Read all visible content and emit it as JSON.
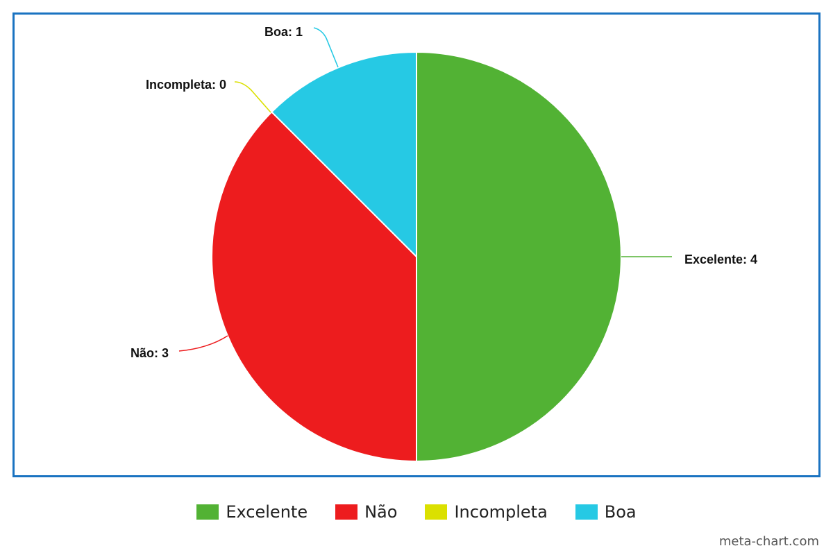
{
  "chart_data": {
    "type": "pie",
    "title": "",
    "slices": [
      {
        "label": "Excelente",
        "value": 4,
        "color": "#52b234",
        "data_label": "Excelente: 4"
      },
      {
        "label": "Não",
        "value": 3,
        "color": "#ed1c1e",
        "data_label": "Não: 3"
      },
      {
        "label": "Incompleta",
        "value": 0,
        "color": "#dbe000",
        "data_label": "Incompleta: 0"
      },
      {
        "label": "Boa",
        "value": 1,
        "color": "#26c9e4",
        "data_label": "Boa: 1"
      }
    ],
    "legend_position": "bottom"
  },
  "legend": {
    "items": [
      {
        "label": "Excelente",
        "color": "#52b234"
      },
      {
        "label": "Não",
        "color": "#ed1c1e"
      },
      {
        "label": "Incompleta",
        "color": "#dbe000"
      },
      {
        "label": "Boa",
        "color": "#26c9e4"
      }
    ]
  },
  "watermark": "meta-chart.com",
  "frame_color": "#1a73c1"
}
